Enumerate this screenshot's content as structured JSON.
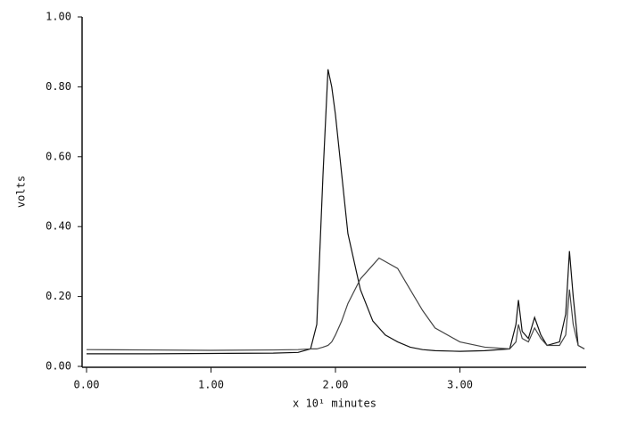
{
  "chart_data": {
    "type": "line",
    "x_label": "x 10¹ minutes",
    "y_label": "volts",
    "x": [
      0,
      0.5,
      1.0,
      1.5,
      1.7,
      1.8,
      1.85,
      1.9,
      1.94,
      1.97,
      2.0,
      2.05,
      2.1,
      2.2,
      2.3,
      2.35,
      2.4,
      2.5,
      2.6,
      2.7,
      2.8,
      3.0,
      3.2,
      3.4,
      3.45,
      3.47,
      3.5,
      3.55,
      3.6,
      3.65,
      3.7,
      3.8,
      3.85,
      3.88,
      3.91,
      3.95,
      4.0
    ],
    "series": [
      {
        "color": "#111111",
        "values": [
          0.036,
          0.036,
          0.037,
          0.038,
          0.04,
          0.05,
          0.12,
          0.55,
          0.85,
          0.8,
          0.72,
          0.55,
          0.38,
          0.22,
          0.13,
          0.11,
          0.09,
          0.07,
          0.055,
          0.048,
          0.045,
          0.043,
          0.045,
          0.05,
          0.12,
          0.19,
          0.1,
          0.08,
          0.14,
          0.09,
          0.06,
          0.07,
          0.15,
          0.33,
          0.2,
          0.06,
          0.05
        ]
      },
      {
        "color": "#444444",
        "values": [
          0.048,
          0.047,
          0.046,
          0.047,
          0.048,
          0.05,
          0.05,
          0.055,
          0.06,
          0.07,
          0.09,
          0.13,
          0.18,
          0.25,
          0.29,
          0.31,
          0.3,
          0.28,
          0.22,
          0.16,
          0.11,
          0.07,
          0.055,
          0.05,
          0.07,
          0.12,
          0.08,
          0.07,
          0.11,
          0.08,
          0.06,
          0.06,
          0.09,
          0.22,
          0.12,
          0.06,
          0.05
        ]
      }
    ],
    "xlim": [
      0,
      4.0
    ],
    "xticks": [
      {
        "value": 0,
        "label": "0.00"
      },
      {
        "value": 1,
        "label": "1.00"
      },
      {
        "value": 2,
        "label": "2.00"
      },
      {
        "value": 3,
        "label": "3.00"
      }
    ],
    "ylim": [
      0,
      1.0
    ],
    "yticks": [
      {
        "value": 0,
        "label": "0.00"
      },
      {
        "value": 0.2,
        "label": "0.20"
      },
      {
        "value": 0.4,
        "label": "0.40"
      },
      {
        "value": 0.6,
        "label": "0.60"
      },
      {
        "value": 0.8,
        "label": "0.80"
      },
      {
        "value": 1.0,
        "label": "1.00"
      }
    ]
  }
}
